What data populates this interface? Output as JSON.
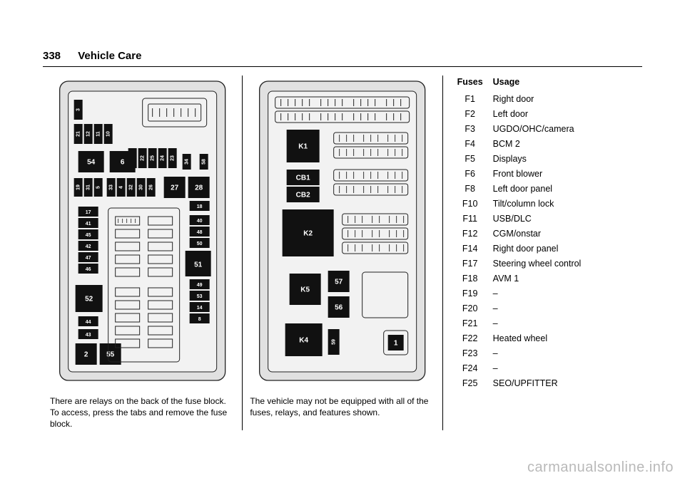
{
  "page_number": "338",
  "section_title": "Vehicle Care",
  "col1_caption": "There are relays on the back of the fuse block. To access, press the tabs and remove the fuse block.",
  "col2_caption": "The vehicle may not be equipped with all of the fuses, relays, and features shown.",
  "table_header_fuses": "Fuses",
  "table_header_usage": "Usage",
  "fuse_rows": [
    {
      "f": "F1",
      "u": "Right door"
    },
    {
      "f": "F2",
      "u": "Left door"
    },
    {
      "f": "F3",
      "u": "UGDO/OHC/camera"
    },
    {
      "f": "F4",
      "u": "BCM 2"
    },
    {
      "f": "F5",
      "u": "Displays"
    },
    {
      "f": "F6",
      "u": "Front blower"
    },
    {
      "f": "F8",
      "u": "Left door panel"
    },
    {
      "f": "F10",
      "u": "Tilt/column lock"
    },
    {
      "f": "F11",
      "u": "USB/DLC"
    },
    {
      "f": "F12",
      "u": "CGM/onstar"
    },
    {
      "f": "F14",
      "u": "Right door panel"
    },
    {
      "f": "F17",
      "u": "Steering wheel control"
    },
    {
      "f": "F18",
      "u": "AVM 1"
    },
    {
      "f": "F19",
      "u": "–"
    },
    {
      "f": "F20",
      "u": "–"
    },
    {
      "f": "F21",
      "u": "–"
    },
    {
      "f": "F22",
      "u": "Heated wheel"
    },
    {
      "f": "F23",
      "u": "–"
    },
    {
      "f": "F24",
      "u": "–"
    },
    {
      "f": "F25",
      "u": "SEO/UPFITTER"
    }
  ],
  "watermark": "carmanualsonline.info",
  "diagram1": {
    "big_labels": [
      "54",
      "6",
      "27",
      "28",
      "51",
      "52",
      "2",
      "55"
    ],
    "small_labels_top": [
      "3",
      "21",
      "12",
      "11",
      "10",
      "20",
      "22",
      "25",
      "24",
      "23",
      "34",
      "58"
    ],
    "small_labels_mid": [
      "19",
      "31",
      "5",
      "33",
      "4",
      "32",
      "30",
      "26",
      "17",
      "41",
      "45",
      "42",
      "47",
      "46",
      "40",
      "48",
      "50",
      "18",
      "49",
      "53",
      "14",
      "8",
      "44",
      "43"
    ]
  },
  "diagram2": {
    "relays": [
      "K1",
      "CB1",
      "CB2",
      "K2",
      "K5",
      "57",
      "56",
      "K4",
      "59",
      "1"
    ]
  }
}
